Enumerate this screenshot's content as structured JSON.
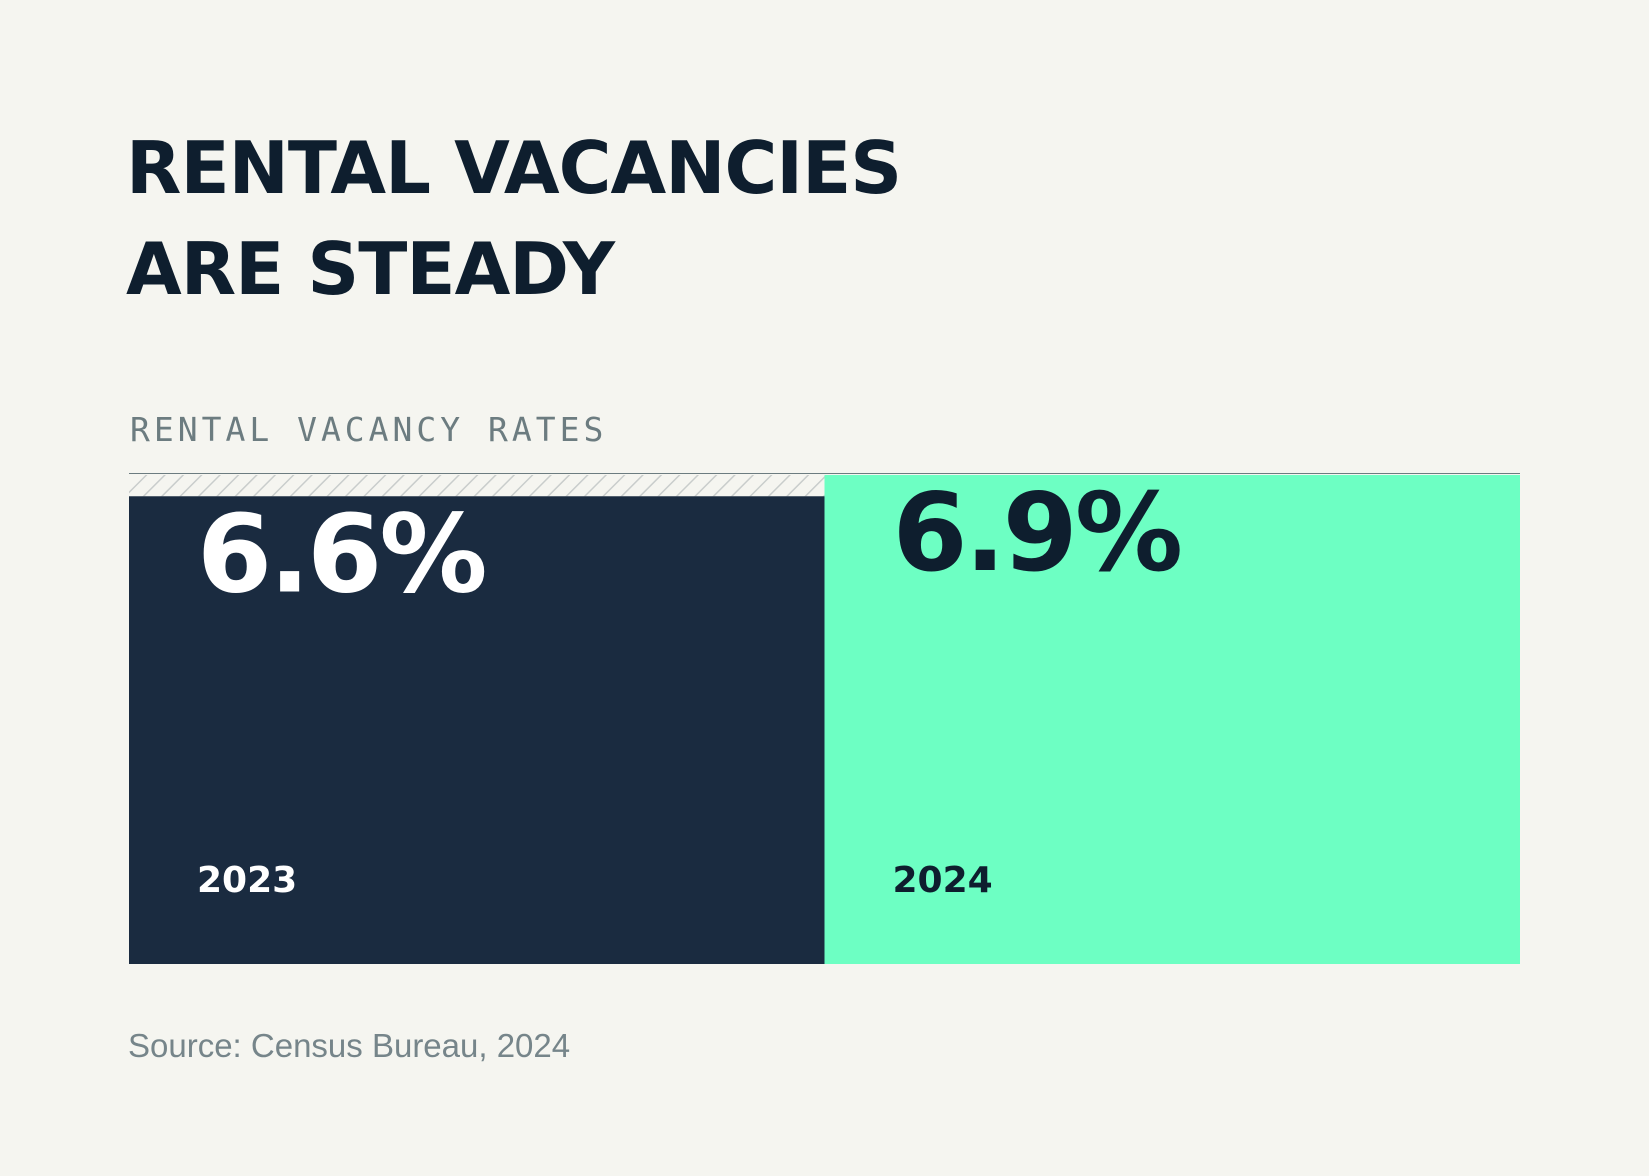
{
  "title_line1": "RENTAL VACANCIES",
  "title_line2": "ARE STEADY",
  "subtitle": "RENTAL VACANCY RATES",
  "source": "Source: Census Bureau, 2024",
  "colors": {
    "background": "#f5f5f0",
    "dark": "#1a2b40",
    "accent": "#6dffc3",
    "text_dark": "#0e1e2e",
    "text_light": "#ffffff",
    "axis": "#6c7c80"
  },
  "chart_data": {
    "type": "bar",
    "categories": [
      "2023",
      "2024"
    ],
    "values": [
      6.6,
      6.9
    ],
    "value_labels": [
      "6.6%",
      "6.9%"
    ],
    "ylim": [
      0,
      6.9
    ],
    "legend": "none",
    "grid": false
  }
}
